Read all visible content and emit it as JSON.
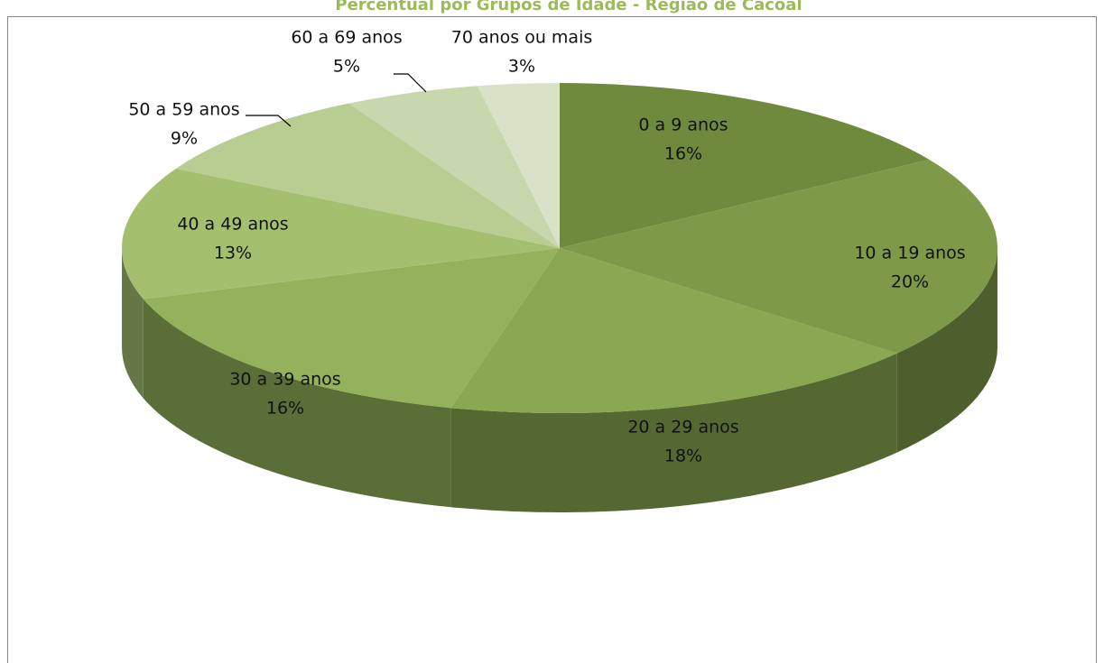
{
  "chart_data": {
    "type": "pie3d",
    "title": "Percentual por Grupos de Idade - Região de Cacoal",
    "categories": [
      "0 a 9 anos",
      "10 a 19 anos",
      "20 a 29 anos",
      "30 a 39 anos",
      "40 a 49 anos",
      "50 a 59 anos",
      "60 a 69 anos",
      "70 anos ou mais"
    ],
    "values": [
      16,
      20,
      18,
      16,
      13,
      9,
      5,
      3
    ],
    "value_labels": [
      "16%",
      "20%",
      "18%",
      "16%",
      "13%",
      "9%",
      "5%",
      "3%"
    ],
    "colors": [
      "#6f8a3d",
      "#7e9a48",
      "#8aa851",
      "#94b25b",
      "#a4c06f",
      "#b9cc92",
      "#c9d7ae",
      "#d9e2c7"
    ]
  }
}
